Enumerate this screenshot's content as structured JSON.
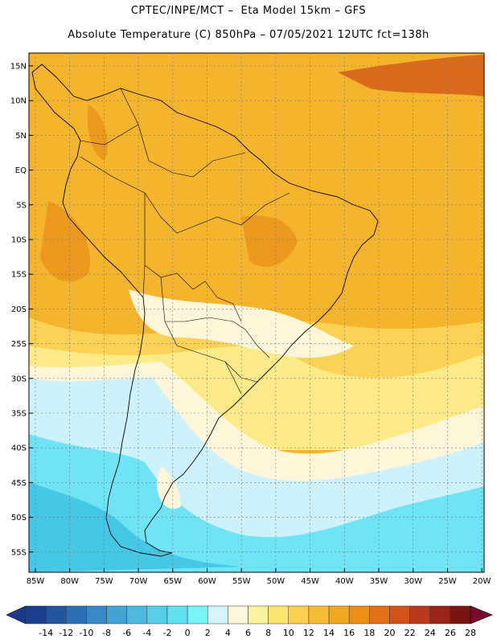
{
  "header": {
    "line1": "CPTEC/INPE/MCT –  Eta Model 15km – GFS",
    "line2": "Absolute Temperature (C) 850hPa – 07/05/2021 12UTC fct=138h"
  },
  "axes": {
    "lat_labels": [
      "15N",
      "10N",
      "5N",
      "EQ",
      "5S",
      "10S",
      "15S",
      "20S",
      "25S",
      "30S",
      "35S",
      "40S",
      "45S",
      "50S",
      "55S"
    ],
    "lon_labels": [
      "85W",
      "80W",
      "75W",
      "70W",
      "65W",
      "60W",
      "55W",
      "50W",
      "45W",
      "40W",
      "35W",
      "30W",
      "25W",
      "20W"
    ]
  },
  "colorbar": {
    "labels": [
      "-14",
      "-12",
      "-10",
      "-8",
      "-6",
      "-4",
      "-2",
      "0",
      "2",
      "4",
      "6",
      "8",
      "10",
      "12",
      "14",
      "16",
      "18",
      "20",
      "22",
      "24",
      "26",
      "28"
    ],
    "colors": [
      "#1b3e8c",
      "#2456a0",
      "#2d6fb4",
      "#3a88c4",
      "#46a2d2",
      "#4fb8de",
      "#57cde8",
      "#62e0f0",
      "#7af3f8",
      "#d2f5fb",
      "#fdf6d8",
      "#fdf2a0",
      "#fde472",
      "#fad050",
      "#f5bc35",
      "#f1a81f",
      "#ea8f17",
      "#e2701a",
      "#d2541a",
      "#b8391b",
      "#9b2418",
      "#7a1612"
    ],
    "low_arrow_color": "#1a3a8a",
    "high_arrow_color": "#7a0b2e"
  },
  "field_colors": {
    "land_hot": "#ec9a1e",
    "warm": "#f4b42c",
    "mild": "#f9d256",
    "cool": "#fdeb8a",
    "pale": "#fdf6d8",
    "icy": "#cdf2fb",
    "cold": "#6ee4f4",
    "colder": "#45c7e6",
    "deep": "#2ea3d4",
    "hot_core": "#d96a1c"
  }
}
